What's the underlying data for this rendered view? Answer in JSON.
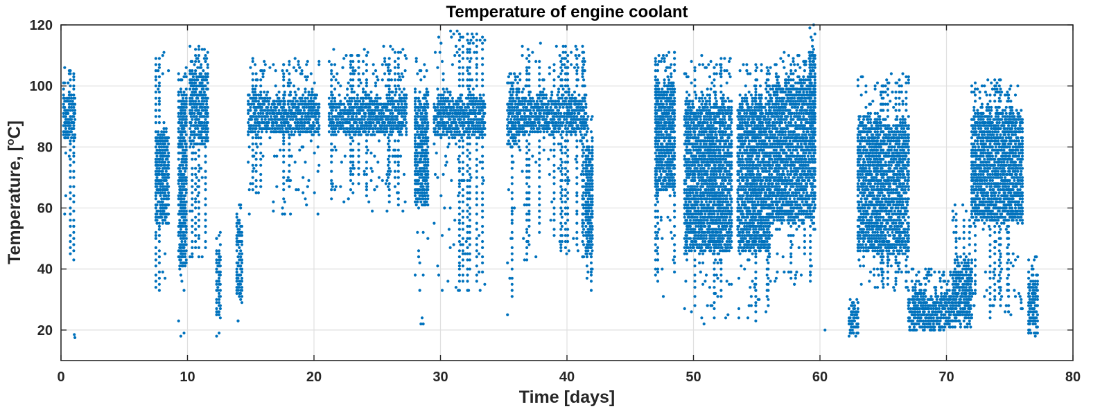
{
  "chart_data": {
    "type": "scatter",
    "title": "Temperature of engine coolant",
    "xlabel": "Time [days]",
    "ylabel_main": "Temperature, [",
    "ylabel_sup": "o",
    "ylabel_tail": "C]",
    "xlim": [
      0,
      80
    ],
    "ylim": [
      10,
      120
    ],
    "xticks": [
      0,
      10,
      20,
      30,
      40,
      50,
      60,
      70,
      80
    ],
    "yticks": [
      20,
      40,
      60,
      80,
      100,
      120
    ],
    "grid": true,
    "marker_color": "#0072BD",
    "episodes": [
      {
        "t0": 0.2,
        "t1": 1.1,
        "lo": 36,
        "hi": 106,
        "core_lo": 82,
        "core_hi": 100
      },
      {
        "t0": 7.5,
        "t1": 8.5,
        "lo": 24,
        "hi": 111,
        "core_lo": 55,
        "core_hi": 88
      },
      {
        "t0": 9.3,
        "t1": 9.9,
        "lo": 18,
        "hi": 106,
        "core_lo": 40,
        "core_hi": 100
      },
      {
        "t0": 10.2,
        "t1": 11.6,
        "lo": 39,
        "hi": 113,
        "core_lo": 80,
        "core_hi": 108
      },
      {
        "t0": 12.3,
        "t1": 12.6,
        "lo": 18,
        "hi": 52,
        "core_lo": 25,
        "core_hi": 50
      },
      {
        "t0": 13.9,
        "t1": 14.3,
        "lo": 17,
        "hi": 61,
        "core_lo": 30,
        "core_hi": 60
      },
      {
        "t0": 14.8,
        "t1": 20.4,
        "lo": 57,
        "hi": 109,
        "core_lo": 84,
        "core_hi": 100
      },
      {
        "t0": 21.2,
        "t1": 27.3,
        "lo": 59,
        "hi": 113,
        "core_lo": 84,
        "core_hi": 100
      },
      {
        "t0": 28.0,
        "t1": 29.0,
        "lo": 18,
        "hi": 109,
        "core_lo": 60,
        "core_hi": 100
      },
      {
        "t0": 29.5,
        "t1": 33.5,
        "lo": 32,
        "hi": 118,
        "core_lo": 83,
        "core_hi": 100
      },
      {
        "t0": 35.3,
        "t1": 36.2,
        "lo": 25,
        "hi": 105,
        "core_lo": 80,
        "core_hi": 100
      },
      {
        "t0": 36.2,
        "t1": 41.5,
        "lo": 43,
        "hi": 114,
        "core_lo": 84,
        "core_hi": 100
      },
      {
        "t0": 41.5,
        "t1": 42.0,
        "lo": 32,
        "hi": 91,
        "core_lo": 45,
        "core_hi": 85
      },
      {
        "t0": 47.0,
        "t1": 48.5,
        "lo": 30,
        "hi": 112,
        "core_lo": 65,
        "core_hi": 105
      },
      {
        "t0": 49.3,
        "t1": 53.0,
        "lo": 22,
        "hi": 110,
        "core_lo": 45,
        "core_hi": 98
      },
      {
        "t0": 53.5,
        "t1": 56.0,
        "lo": 23,
        "hi": 110,
        "core_lo": 45,
        "core_hi": 98
      },
      {
        "t0": 56.0,
        "t1": 59.6,
        "lo": 35,
        "hi": 112,
        "core_lo": 55,
        "core_hi": 105
      },
      {
        "t0": 59.2,
        "t1": 59.6,
        "lo": 55,
        "hi": 120,
        "core_lo": 80,
        "core_hi": 115
      },
      {
        "t0": 62.3,
        "t1": 63.0,
        "lo": 18,
        "hi": 30,
        "core_lo": 19,
        "core_hi": 29
      },
      {
        "t0": 63.0,
        "t1": 67.0,
        "lo": 33,
        "hi": 104,
        "core_lo": 45,
        "core_hi": 92
      },
      {
        "t0": 67.0,
        "t1": 70.5,
        "lo": 20,
        "hi": 40,
        "core_lo": 21,
        "core_hi": 36
      },
      {
        "t0": 70.5,
        "t1": 72.0,
        "lo": 20,
        "hi": 62,
        "core_lo": 23,
        "core_hi": 45
      },
      {
        "t0": 72.0,
        "t1": 76.0,
        "lo": 23,
        "hi": 102,
        "core_lo": 55,
        "core_hi": 95
      },
      {
        "t0": 76.5,
        "t1": 77.2,
        "lo": 18,
        "hi": 45,
        "core_lo": 20,
        "core_hi": 42
      }
    ],
    "outliers": [
      {
        "x": 1.1,
        "y": 17.5
      },
      {
        "x": 1.05,
        "y": 18.5
      },
      {
        "x": 60.4,
        "y": 20
      },
      {
        "x": 30.8,
        "y": 118
      },
      {
        "x": 59.5,
        "y": 120
      }
    ]
  }
}
